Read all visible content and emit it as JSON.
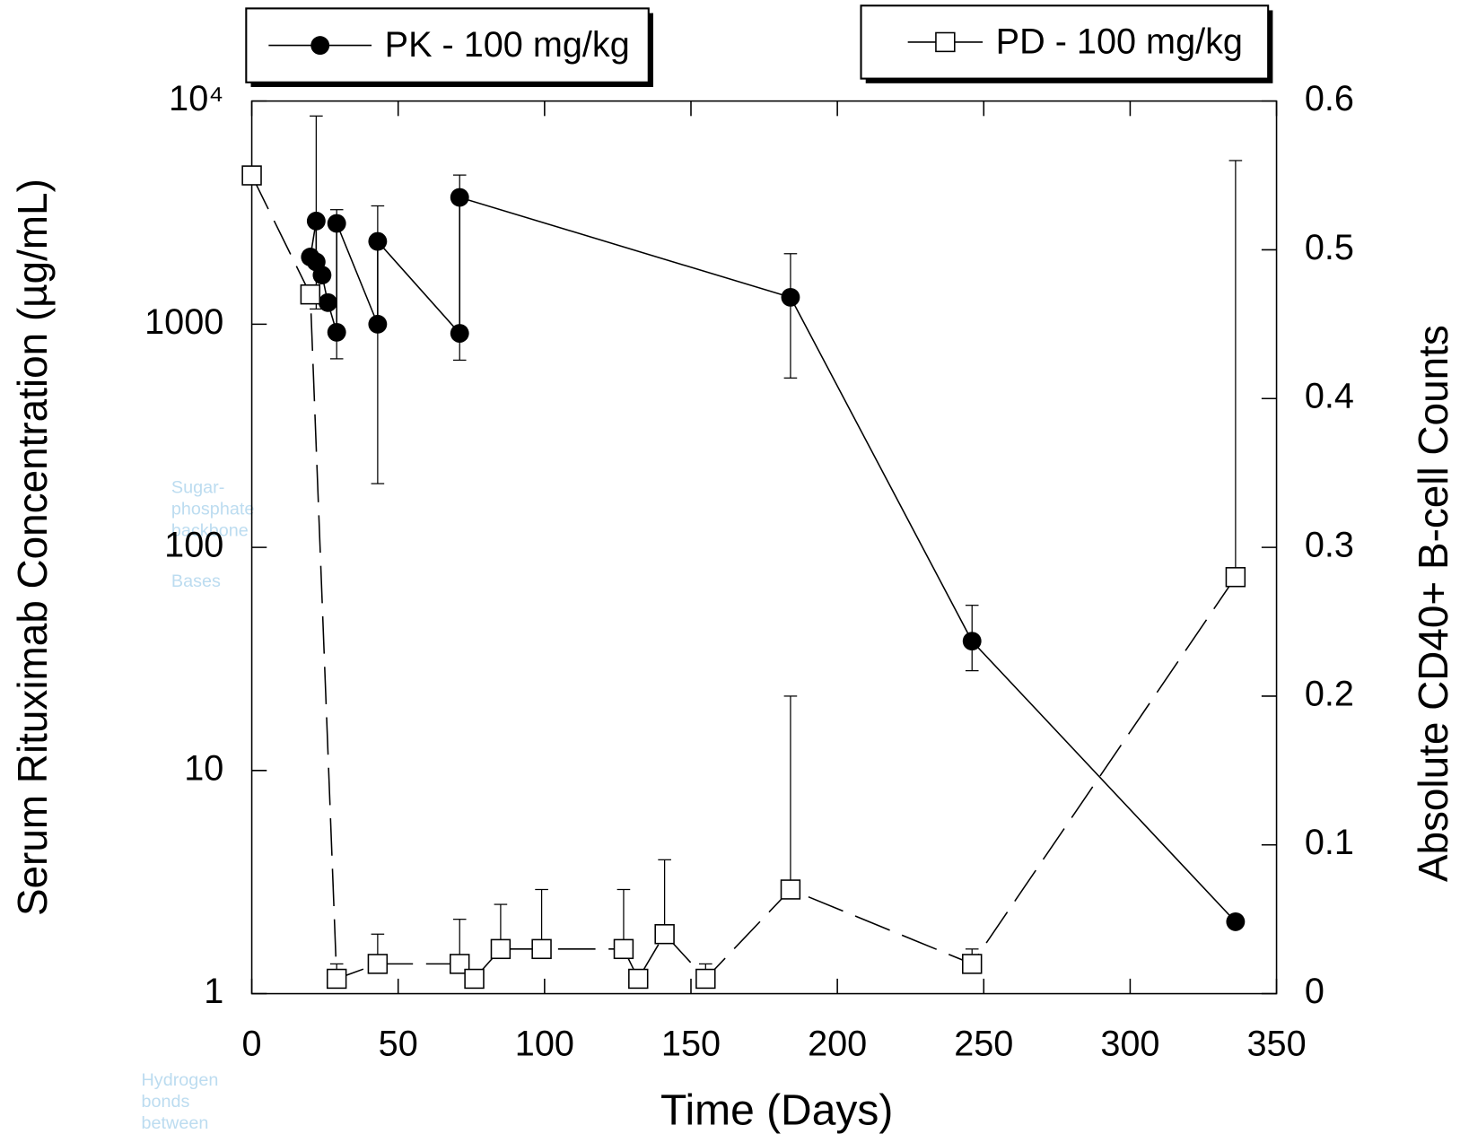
{
  "chart_data": {
    "type": "line",
    "x_label": "Time (Days)",
    "y_label": "Serum Rituximab Concentration (µg/mL)",
    "y2_label": "Absolute CD40+ B-cell Counts",
    "xlim": [
      0,
      350
    ],
    "xticks": [
      0,
      50,
      100,
      150,
      200,
      250,
      300,
      350
    ],
    "ylim": [
      1,
      10000
    ],
    "yscale": "log",
    "yticks": [
      1,
      10,
      100,
      1000,
      {
        "value": 10000,
        "label": "10⁴"
      }
    ],
    "y2lim": [
      0,
      0.6
    ],
    "y2ticks": [
      0,
      0.1,
      0.2,
      0.3,
      0.4,
      0.5,
      0.6
    ],
    "series": [
      {
        "name": "PK - 100 mg/kg",
        "color": "#000000",
        "marker": "filled-circle",
        "dash": "solid",
        "legend": "upper-left",
        "x": [
          20,
          22,
          22,
          24,
          26,
          29,
          29,
          43,
          43,
          71,
          71,
          184,
          246,
          336
        ],
        "values": [
          2000,
          2900,
          1900,
          1660,
          1250,
          920,
          2830,
          1000,
          2350,
          910,
          3700,
          1320,
          38,
          2.1
        ],
        "upper": [
          null,
          null,
          8570,
          null,
          null,
          3260,
          null,
          3390,
          null,
          4660,
          null,
          2070,
          55,
          null
        ],
        "lower": [
          null,
          null,
          1170,
          null,
          null,
          700,
          null,
          193,
          null,
          690,
          null,
          574,
          28,
          null
        ]
      },
      {
        "name": "PD - 100 mg/kg",
        "color": "#000000",
        "marker": "open-square",
        "dash": "dashed",
        "axis": "y2",
        "legend": "upper-right",
        "x": [
          0,
          20,
          29,
          43,
          71,
          76,
          85,
          99,
          127,
          132,
          141,
          155,
          184,
          246,
          336
        ],
        "values": [
          0.55,
          0.47,
          0.01,
          0.02,
          0.02,
          0.01,
          0.03,
          0.03,
          0.03,
          0.01,
          0.04,
          0.01,
          0.07,
          0.02,
          0.28
        ],
        "upper": [
          null,
          null,
          0.02,
          0.04,
          0.05,
          null,
          0.06,
          0.07,
          0.07,
          null,
          0.09,
          0.02,
          0.2,
          0.03,
          0.56
        ]
      }
    ],
    "annotations": [
      "Sugar-",
      "phosphate",
      "backbone",
      "Bases",
      "Hydrogen",
      "bonds",
      "between"
    ]
  }
}
